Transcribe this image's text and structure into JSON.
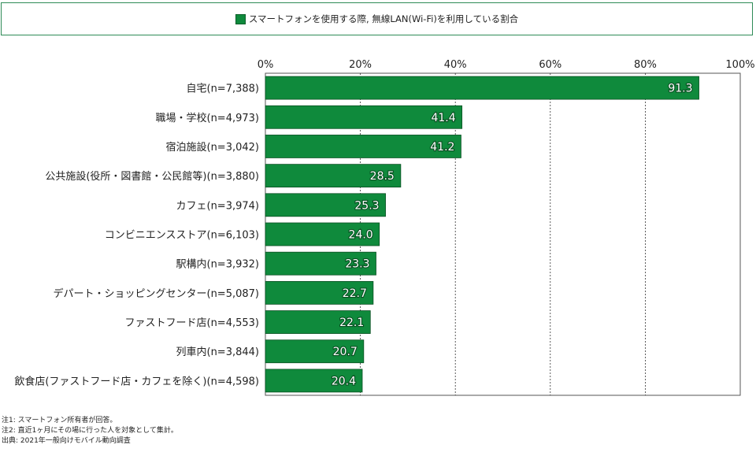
{
  "legend": {
    "label": "スマートフォンを使用する際, 無線LAN(Wi-Fi)を利用している割合",
    "color": "#0f8a3c"
  },
  "notes": [
    "注1: スマートフォン所有者が回答。",
    "注2: 直近1ヶ月にその場に行った人を対象として集計。",
    "出典: 2021年一般向けモバイル動向調査"
  ],
  "chart_data": {
    "type": "bar",
    "orientation": "horizontal",
    "categories": [
      "自宅(n=7,388)",
      "職場・学校(n=4,973)",
      "宿泊施設(n=3,042)",
      "公共施設(役所・図書館・公民館等)(n=3,880)",
      "カフェ(n=3,974)",
      "コンビニエンスストア(n=6,103)",
      "駅構内(n=3,932)",
      "デパート・ショッピングセンター(n=5,087)",
      "ファストフード店(n=4,553)",
      "列車内(n=3,844)",
      "飲食店(ファストフード店・カフェを除く)(n=4,598)"
    ],
    "values": [
      91.3,
      41.4,
      41.2,
      28.5,
      25.3,
      24.0,
      23.3,
      22.7,
      22.1,
      20.7,
      20.4
    ],
    "value_labels": [
      "91.3",
      "41.4",
      "41.2",
      "28.5",
      "25.3",
      "24.0",
      "23.3",
      "22.7",
      "22.1",
      "20.7",
      "20.4"
    ],
    "xlim": [
      0,
      100
    ],
    "xticks": [
      "0%",
      "20%",
      "40%",
      "60%",
      "80%",
      "100%"
    ],
    "grid": true,
    "bar_color": "#0f8a3c",
    "legend_position": "top"
  }
}
